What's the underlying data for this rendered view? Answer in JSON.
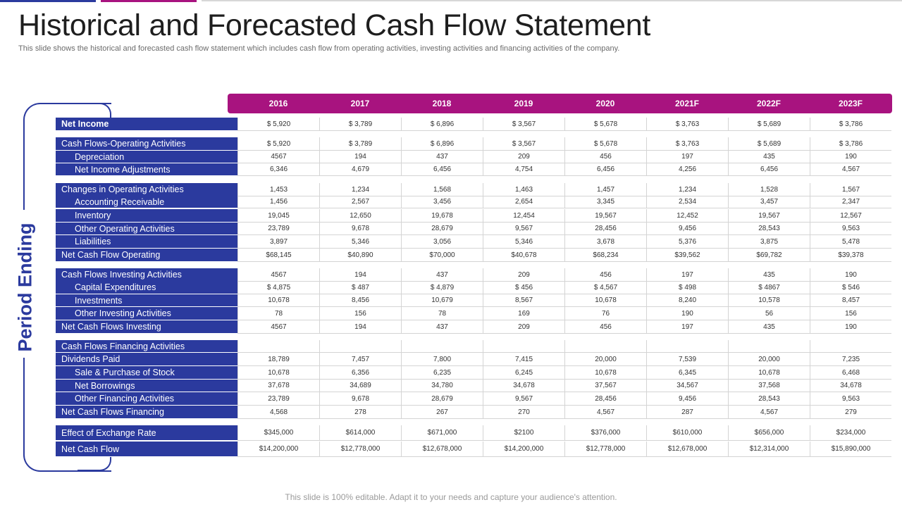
{
  "title": "Historical and Forecasted Cash Flow Statement",
  "subtitle": "This slide shows the historical and forecasted cash flow statement which includes cash flow from operating activities, investing activities and financing activities of the company.",
  "side_label": "Period Ending",
  "years": [
    "2016",
    "2017",
    "2018",
    "2019",
    "2020",
    "2021F",
    "2022F",
    "2023F"
  ],
  "rows": [
    {
      "label": "Net Income",
      "bold": true,
      "values": [
        "$ 5,920",
        "$ 3,789",
        "$ 6,896",
        "$ 3,567",
        "$ 5,678",
        "$ 3,763",
        "$ 5,689",
        "$ 3,786"
      ]
    },
    {
      "label": "Cash Flows-Operating Activities",
      "values": [
        "$ 5,920",
        "$ 3,789",
        "$ 6,896",
        "$ 3,567",
        "$ 5,678",
        "$ 3,763",
        "$ 5,689",
        "$ 3,786"
      ]
    },
    {
      "label": "Depreciation",
      "sub": true,
      "values": [
        "4567",
        "194",
        "437",
        "209",
        "456",
        "197",
        "435",
        "190"
      ]
    },
    {
      "label": "Net Income Adjustments",
      "sub": true,
      "values": [
        "6,346",
        "4,679",
        "6,456",
        "4,754",
        "6,456",
        "4,256",
        "6,456",
        "4,567"
      ]
    },
    {
      "label": "Changes in Operating Activities",
      "values": [
        "1,453",
        "1,234",
        "1,568",
        "1,463",
        "1,457",
        "1,234",
        "1,528",
        "1,567"
      ]
    },
    {
      "label": "Accounting Receivable",
      "sub": true,
      "values": [
        "1,456",
        "2,567",
        "3,456",
        "2,654",
        "3,345",
        "2,534",
        "3,457",
        "2,347"
      ]
    },
    {
      "label": "Inventory",
      "sub": true,
      "values": [
        "19,045",
        "12,650",
        "19,678",
        "12,454",
        "19,567",
        "12,452",
        "19,567",
        "12,567"
      ]
    },
    {
      "label": "Other Operating Activities",
      "sub": true,
      "values": [
        "23,789",
        "9,678",
        "28,679",
        "9,567",
        "28,456",
        "9,456",
        "28,543",
        "9,563"
      ]
    },
    {
      "label": "Liabilities",
      "sub": true,
      "values": [
        "3,897",
        "5,346",
        "3,056",
        "5,346",
        "3,678",
        "5,376",
        "3,875",
        "5,478"
      ]
    },
    {
      "label": "Net Cash Flow Operating",
      "values": [
        "$68,145",
        "$40,890",
        "$70,000",
        "$40,678",
        "$68,234",
        "$39,562",
        "$69,782",
        "$39,378"
      ]
    },
    {
      "label": "Cash Flows Investing Activities",
      "values": [
        "4567",
        "194",
        "437",
        "209",
        "456",
        "197",
        "435",
        "190"
      ]
    },
    {
      "label": "Capital Expenditures",
      "sub": true,
      "values": [
        "$ 4,875",
        "$ 487",
        "$ 4,879",
        "$ 456",
        "$ 4,567",
        "$ 498",
        "$ 4867",
        "$ 546"
      ]
    },
    {
      "label": "Investments",
      "sub": true,
      "values": [
        "10,678",
        "8,456",
        "10,679",
        "8,567",
        "10,678",
        "8,240",
        "10,578",
        "8,457"
      ]
    },
    {
      "label": "Other Investing Activities",
      "sub": true,
      "values": [
        "78",
        "156",
        "78",
        "169",
        "76",
        "190",
        "56",
        "156"
      ]
    },
    {
      "label": "Net Cash Flows Investing",
      "values": [
        "4567",
        "194",
        "437",
        "209",
        "456",
        "197",
        "435",
        "190"
      ]
    },
    {
      "label": "Cash Flows Financing Activities",
      "values": [
        "",
        "",
        "",
        "",
        "",
        "",
        "",
        ""
      ]
    },
    {
      "label": "Dividends  Paid",
      "values": [
        "18,789",
        "7,457",
        "7,800",
        "7,415",
        "20,000",
        "7,539",
        "20,000",
        "7,235"
      ]
    },
    {
      "label": "Sale & Purchase of Stock",
      "sub": true,
      "values": [
        "10,678",
        "6,356",
        "6,235",
        "6,245",
        "10,678",
        "6,345",
        "10,678",
        "6,468"
      ]
    },
    {
      "label": "Net Borrowings",
      "sub": true,
      "values": [
        "37,678",
        "34,689",
        "34,780",
        "34,678",
        "37,567",
        "34,567",
        "37,568",
        "34,678"
      ]
    },
    {
      "label": "Other Financing Activities",
      "sub": true,
      "values": [
        "23,789",
        "9,678",
        "28,679",
        "9,567",
        "28,456",
        "9,456",
        "28,543",
        "9,563"
      ]
    },
    {
      "label": "Net Cash Flows Financing",
      "values": [
        "4,568",
        "278",
        "267",
        "270",
        "4,567",
        "287",
        "4,567",
        "279"
      ]
    },
    {
      "label": "Effect of Exchange Rate",
      "values": [
        "$345,000",
        "$614,000",
        "$671,000",
        "$2100",
        "$376,000",
        "$610,000",
        "$656,000",
        "$234,000"
      ]
    },
    {
      "label": "Net Cash Flow",
      "values": [
        "$14,200,000",
        "$12,778,000",
        "$12,678,000",
        "$14,200,000",
        "$12,778,000",
        "$12,678,000",
        "$12,314,000",
        "$15,890,000"
      ]
    }
  ],
  "footer": "This slide is 100% editable. Adapt it to your needs and capture your audience's attention.",
  "colors": {
    "primary": "#2b3a9e",
    "accent": "#a8137f"
  }
}
